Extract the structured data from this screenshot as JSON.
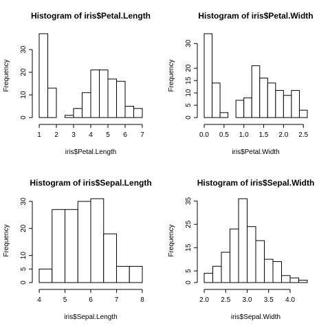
{
  "chart_data": [
    {
      "type": "bar",
      "title": "Histogram of iris$Petal.Length",
      "xlabel": "iris$Petal.Length",
      "ylabel": "Frequency",
      "bins": [
        [
          1,
          1.5
        ],
        [
          1.5,
          2
        ],
        [
          2,
          2.5
        ],
        [
          2.5,
          3
        ],
        [
          3,
          3.5
        ],
        [
          3.5,
          4
        ],
        [
          4,
          4.5
        ],
        [
          4.5,
          5
        ],
        [
          5,
          5.5
        ],
        [
          5.5,
          6
        ],
        [
          6,
          6.5
        ],
        [
          6.5,
          7
        ]
      ],
      "values": [
        37,
        13,
        0,
        1,
        4,
        11,
        21,
        21,
        17,
        16,
        5,
        4
      ],
      "xlim": [
        1,
        7
      ],
      "ylim": [
        0,
        37
      ],
      "xticks": [
        1,
        2,
        3,
        4,
        5,
        6,
        7
      ],
      "yticks": [
        0,
        10,
        20,
        30
      ],
      "grid": false
    },
    {
      "type": "bar",
      "title": "Histogram of iris$Petal.Width",
      "xlabel": "iris$Petal.Width",
      "ylabel": "Frequency",
      "bins": [
        [
          0,
          0.2
        ],
        [
          0.2,
          0.4
        ],
        [
          0.4,
          0.6
        ],
        [
          0.6,
          0.8
        ],
        [
          0.8,
          1.0
        ],
        [
          1.0,
          1.2
        ],
        [
          1.2,
          1.4
        ],
        [
          1.4,
          1.6
        ],
        [
          1.6,
          1.8
        ],
        [
          1.8,
          2.0
        ],
        [
          2.0,
          2.2
        ],
        [
          2.2,
          2.4
        ],
        [
          2.4,
          2.6
        ]
      ],
      "values": [
        34,
        14,
        2,
        0,
        7,
        8,
        21,
        16,
        14,
        11,
        9,
        11,
        3
      ],
      "xlim": [
        0,
        2.6
      ],
      "ylim": [
        0,
        34
      ],
      "xticks": [
        "0.0",
        "0.5",
        "1.0",
        "1.5",
        "2.0",
        "2.5"
      ],
      "yticks": [
        0,
        5,
        10,
        15,
        20,
        30
      ],
      "grid": false
    },
    {
      "type": "bar",
      "title": "Histogram of iris$Sepal.Length",
      "xlabel": "iris$Sepal.Length",
      "ylabel": "Frequency",
      "bins": [
        [
          4,
          4.5
        ],
        [
          4.5,
          5
        ],
        [
          5,
          5.5
        ],
        [
          5.5,
          6
        ],
        [
          6,
          6.5
        ],
        [
          6.5,
          7
        ],
        [
          7,
          7.5
        ],
        [
          7.5,
          8
        ]
      ],
      "values": [
        5,
        27,
        27,
        30,
        31,
        18,
        6,
        6
      ],
      "xlim": [
        4,
        8
      ],
      "ylim": [
        0,
        31
      ],
      "xticks": [
        4,
        5,
        6,
        7,
        8
      ],
      "yticks": [
        0,
        5,
        10,
        20,
        30
      ],
      "grid": false
    },
    {
      "type": "bar",
      "title": "Histogram of iris$Sepal.Width",
      "xlabel": "iris$Sepal.Width",
      "ylabel": "Frequency",
      "bins": [
        [
          2.0,
          2.2
        ],
        [
          2.2,
          2.4
        ],
        [
          2.4,
          2.6
        ],
        [
          2.6,
          2.8
        ],
        [
          2.8,
          3.0
        ],
        [
          3.0,
          3.2
        ],
        [
          3.2,
          3.4
        ],
        [
          3.4,
          3.6
        ],
        [
          3.6,
          3.8
        ],
        [
          3.8,
          4.0
        ],
        [
          4.0,
          4.2
        ],
        [
          4.2,
          4.4
        ]
      ],
      "values": [
        4,
        7,
        13,
        23,
        36,
        24,
        18,
        10,
        9,
        3,
        2,
        1
      ],
      "xlim": [
        2.0,
        4.4
      ],
      "ylim": [
        0,
        36
      ],
      "xticks": [
        "2.0",
        "2.5",
        "3.0",
        "3.5",
        "4.0"
      ],
      "yticks": [
        0,
        5,
        15,
        25,
        35
      ],
      "grid": false
    }
  ]
}
